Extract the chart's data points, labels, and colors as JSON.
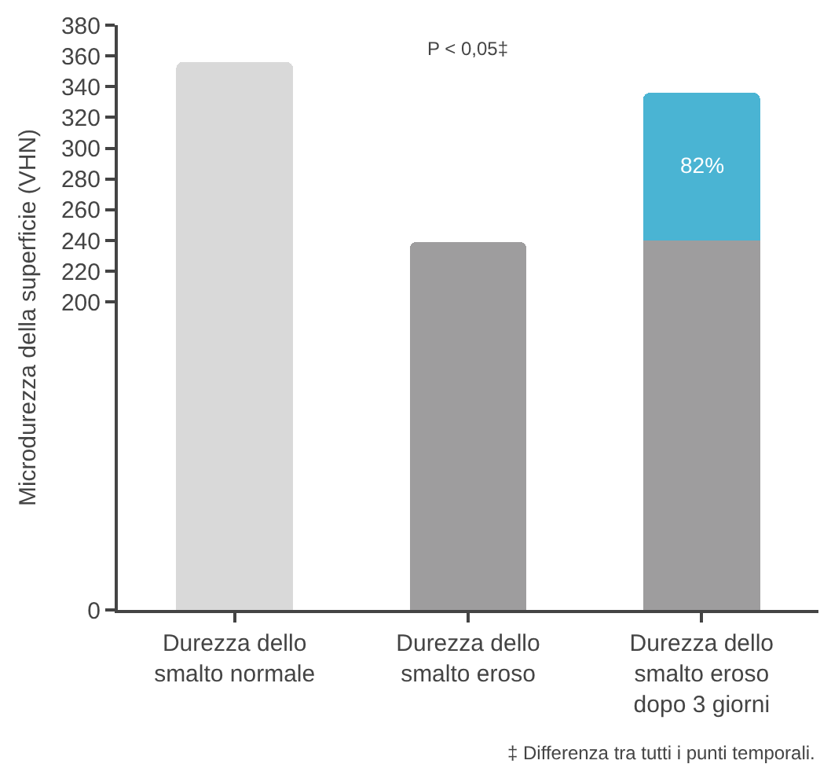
{
  "chart_data": {
    "type": "bar",
    "ylabel": "Microdurezza della superficie (VHN)",
    "categories": [
      "Durezza dello\nsmalto normale",
      "Durezza dello\nsmalto eroso",
      "Durezza dello\nsmalto eroso\ndopo 3 giorni"
    ],
    "series": [
      {
        "colors": [
          "#d9d9d9",
          "#9e9d9e",
          "#9e9d9e"
        ],
        "values": [
          356,
          239,
          240
        ]
      },
      {
        "color": "#4ab4d3",
        "values": [
          null,
          null,
          96
        ]
      }
    ],
    "stacked": true,
    "ylim": [
      0,
      380
    ],
    "yticks": [
      0,
      200,
      220,
      240,
      260,
      280,
      300,
      320,
      340,
      360,
      380
    ],
    "grid": false,
    "annotations": [
      "P < 0,05‡",
      "‡ Differenza tra tutti i punti temporali.",
      "82%"
    ]
  }
}
